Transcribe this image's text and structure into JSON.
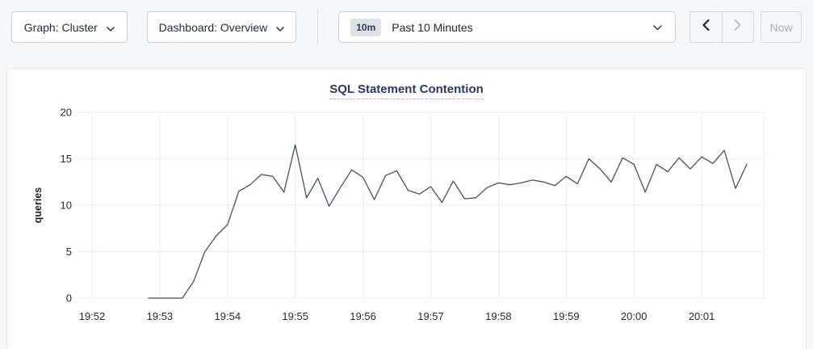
{
  "toolbar": {
    "graph_dropdown_label": "Graph: Cluster",
    "dashboard_dropdown_label": "Dashboard: Overview",
    "time_window_badge": "10m",
    "time_window_label": "Past 10 Minutes",
    "now_button_label": "Now"
  },
  "chart_data": {
    "type": "line",
    "title": "SQL Statement Contention",
    "ylabel": "queries",
    "ylim": [
      0,
      20
    ],
    "yticks": [
      0,
      5,
      10,
      15,
      20
    ],
    "xticks": [
      "19:52",
      "19:53",
      "19:54",
      "19:55",
      "19:56",
      "19:57",
      "19:58",
      "19:59",
      "20:00",
      "20:01"
    ],
    "grid": true,
    "legend_position": "none",
    "line_color": "#454f6d",
    "series_start_time": "19:52:50",
    "interval_seconds": 10,
    "values": [
      0,
      0,
      0,
      0,
      1.8,
      5,
      6.7,
      7.9,
      11.5,
      12.2,
      13.3,
      13.1,
      11.4,
      16.5,
      10.8,
      12.9,
      9.9,
      11.9,
      13.8,
      13,
      10.6,
      13.2,
      13.7,
      11.6,
      11.2,
      12,
      10.3,
      12.6,
      10.7,
      10.8,
      11.9,
      12.4,
      12.2,
      12.4,
      12.7,
      12.5,
      12.1,
      13.1,
      12.3,
      15,
      13.9,
      12.5,
      15.1,
      14.4,
      11.4,
      14.4,
      13.6,
      15.1,
      13.9,
      15.2,
      14.5,
      15.9,
      11.8,
      14.4
    ]
  }
}
